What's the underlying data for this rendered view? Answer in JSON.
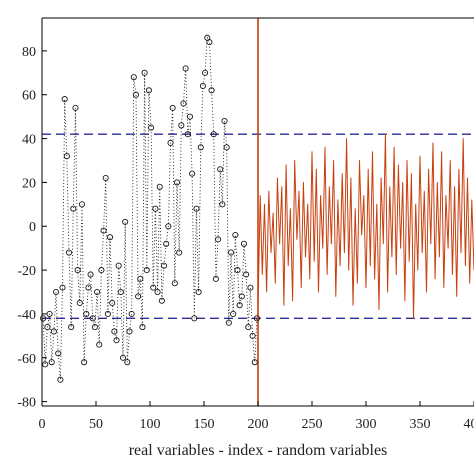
{
  "chart_data": {
    "type": "scatter",
    "xlabel": "real variables - index - random variables",
    "ylabel": "",
    "xlim": [
      0,
      400
    ],
    "ylim": [
      -82,
      95
    ],
    "x_ticks": [
      0,
      50,
      100,
      150,
      200,
      250,
      300,
      350,
      400
    ],
    "y_ticks": [
      -80,
      -60,
      -40,
      -20,
      0,
      20,
      40,
      60,
      80
    ],
    "grid": false,
    "legend": "none",
    "thresholds": [
      42,
      -42
    ],
    "divider_x": 200,
    "colors": {
      "real": "#1a1a1a",
      "random": "#c8400f",
      "threshold": "#2b2b9a",
      "divider": "#c8400f",
      "axis": "#000000"
    },
    "series": [
      {
        "style": "circles-dotted",
        "x": [
          1,
          3,
          5,
          7,
          9,
          11,
          13,
          15,
          17,
          19,
          21,
          23,
          25,
          27,
          29,
          31,
          33,
          35,
          37,
          39,
          41,
          43,
          45,
          47,
          49,
          51,
          53,
          55,
          57,
          59,
          61,
          63,
          65,
          67,
          69,
          71,
          73,
          75,
          77,
          79,
          81,
          83,
          85,
          87,
          89,
          91,
          93,
          95,
          97,
          99,
          101,
          103,
          105,
          107,
          109,
          111,
          113,
          115,
          117,
          119,
          121,
          123,
          125,
          127,
          129,
          131,
          133,
          135,
          137,
          139,
          141,
          143,
          145,
          147,
          149,
          151,
          153,
          155,
          157,
          159,
          161,
          163,
          165,
          167,
          169,
          171,
          173,
          175,
          177,
          179,
          181,
          183,
          185,
          187,
          189,
          191,
          193,
          195,
          197,
          199
        ],
        "y": [
          -42,
          -63,
          -46,
          -40,
          -62,
          -48,
          -30,
          -58,
          -70,
          -28,
          58,
          32,
          -12,
          -46,
          8,
          54,
          -20,
          -35,
          10,
          -62,
          -40,
          -28,
          -22,
          -42,
          -46,
          -30,
          -54,
          -20,
          -2,
          22,
          -40,
          -5,
          -35,
          -48,
          -52,
          -18,
          -30,
          -60,
          2,
          -62,
          -48,
          -40,
          68,
          60,
          -32,
          -24,
          -46,
          70,
          -20,
          62,
          45,
          -28,
          8,
          -30,
          18,
          -34,
          -18,
          -8,
          0,
          38,
          54,
          -26,
          20,
          -12,
          46,
          56,
          72,
          42,
          50,
          24,
          -42,
          8,
          -30,
          36,
          64,
          70,
          86,
          84,
          62,
          42,
          -24,
          -6,
          26,
          10,
          48,
          36,
          -44,
          -12,
          -40,
          -4,
          -20,
          -36,
          -32,
          -8,
          -22,
          -46,
          -28,
          -50,
          -62,
          -42
        ]
      },
      {
        "style": "line",
        "x": [
          200,
          202,
          204,
          206,
          208,
          210,
          212,
          214,
          216,
          218,
          220,
          222,
          224,
          226,
          228,
          230,
          232,
          234,
          236,
          238,
          240,
          242,
          244,
          246,
          248,
          250,
          252,
          254,
          256,
          258,
          260,
          262,
          264,
          266,
          268,
          270,
          272,
          274,
          276,
          278,
          280,
          282,
          284,
          286,
          288,
          290,
          292,
          294,
          296,
          298,
          300,
          302,
          304,
          306,
          308,
          310,
          312,
          314,
          316,
          318,
          320,
          322,
          324,
          326,
          328,
          330,
          332,
          334,
          336,
          338,
          340,
          342,
          344,
          346,
          348,
          350,
          352,
          354,
          356,
          358,
          360,
          362,
          364,
          366,
          368,
          370,
          372,
          374,
          376,
          378,
          380,
          382,
          384,
          386,
          388,
          390,
          392,
          394,
          396,
          398,
          400
        ],
        "y": [
          -38,
          14,
          -22,
          10,
          -30,
          16,
          -12,
          6,
          -26,
          22,
          -8,
          18,
          -36,
          28,
          -18,
          8,
          -34,
          30,
          -6,
          16,
          -28,
          20,
          -14,
          10,
          -24,
          34,
          -16,
          26,
          -30,
          14,
          -10,
          36,
          -22,
          18,
          -8,
          30,
          -32,
          12,
          -18,
          24,
          -12,
          40,
          -20,
          22,
          -36,
          8,
          -26,
          30,
          -4,
          14,
          -28,
          26,
          -18,
          34,
          -24,
          10,
          -38,
          22,
          -8,
          42,
          -30,
          18,
          -14,
          36,
          -22,
          28,
          -10,
          20,
          -34,
          30,
          -16,
          24,
          -42,
          10,
          -20,
          32,
          -12,
          16,
          -30,
          26,
          -8,
          38,
          -24,
          20,
          -14,
          34,
          -28,
          14,
          -10,
          30,
          -22,
          18,
          -32,
          26,
          -12,
          40,
          -18,
          22,
          -26,
          12,
          -20
        ]
      }
    ]
  }
}
